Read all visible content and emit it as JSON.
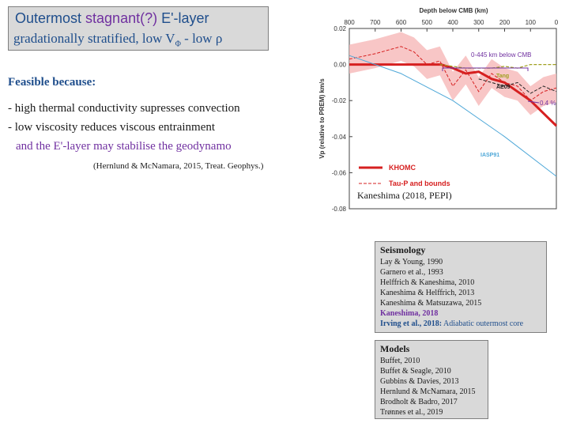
{
  "title": {
    "line1_a": "Outermost ",
    "line1_b": "stagnant(?)",
    "line1_c": " E'-layer",
    "line2_a": "gradationally stratified, low V",
    "line2_sub": "Φ",
    "line2_b": " - low ρ"
  },
  "feasible": {
    "heading": "Feasible because:",
    "reason1": "- high thermal conductivity supresses convection",
    "reason2": "- low viscosity reduces viscous entrainment",
    "reason3": "and the E'-layer may stabilise the geodynamo",
    "citation": "(Hernlund & McNamara, 2015, Treat. Geophys.)"
  },
  "plot": {
    "caption": "Kaneshima (2018, PEPI)",
    "annotation_zone": "0-445 km below CMB",
    "annotation_pct": "0.4 %",
    "chart_data": {
      "type": "line",
      "title": "Depth below CMB (km)",
      "xlabel": "Depth below CMB (km)",
      "ylabel": "Vp (relative to PREM) km/s",
      "x_ticks": [
        "800",
        "700",
        "600",
        "500",
        "400",
        "300",
        "200",
        "100",
        "0"
      ],
      "y_ticks": [
        "0.02",
        "0.00",
        "-0.02",
        "-0.04",
        "-0.06",
        "-0.08"
      ],
      "xlim": [
        800,
        0
      ],
      "ylim": [
        -0.08,
        0.02
      ],
      "series": [
        {
          "name": "KHOMC",
          "color": "#d62020",
          "x": [
            800,
            700,
            600,
            500,
            445,
            400,
            350,
            300,
            250,
            200,
            150,
            100,
            50,
            0
          ],
          "y": [
            0.0,
            0.0,
            0.0,
            0.0,
            0.0,
            -0.002,
            -0.005,
            -0.004,
            -0.008,
            -0.01,
            -0.015,
            -0.02,
            -0.027,
            -0.034
          ]
        },
        {
          "name": "Tau-P and bounds",
          "color": "#d62020",
          "x": [
            800,
            700,
            600,
            550,
            500,
            450,
            400,
            350,
            300,
            250,
            200,
            150,
            100,
            50,
            0
          ],
          "y": [
            0.003,
            0.006,
            0.01,
            0.007,
            0.0,
            0.002,
            -0.012,
            -0.003,
            -0.015,
            -0.005,
            -0.01,
            -0.012,
            -0.02,
            -0.015,
            -0.013
          ]
        },
        {
          "name": "Tang",
          "color": "#a0a020",
          "x": [
            450,
            350,
            250,
            200,
            150,
            100,
            50,
            0
          ],
          "y": [
            0.0,
            -0.002,
            -0.002,
            -0.001,
            -0.002,
            0.0,
            0.0,
            0.0
          ]
        },
        {
          "name": "AE09",
          "color": "#222222",
          "x": [
            300,
            250,
            200,
            150,
            100,
            50,
            0
          ],
          "y": [
            -0.008,
            -0.01,
            -0.012,
            -0.01,
            -0.016,
            -0.012,
            -0.015
          ]
        },
        {
          "name": "IASP91",
          "color": "#4fa8d8",
          "x": [
            800,
            600,
            400,
            200,
            0
          ],
          "y": [
            0.005,
            -0.005,
            -0.02,
            -0.04,
            -0.062
          ]
        }
      ],
      "legend_placement": "bottom-left"
    }
  },
  "seismology": {
    "heading": "Seismology",
    "items": [
      "Lay & Young, 1990",
      "Garnero et al., 1993",
      "Helffrich & Kaneshima, 2010",
      "Kaneshima & Helffrich, 2013",
      "Kaneshima & Matsuzawa, 2015"
    ],
    "highlight1": "Kaneshima, 2018",
    "highlight2_bold": "Irving et al., 2018:",
    "highlight2_rest": " Adiabatic outermost core"
  },
  "models": {
    "heading": "Models",
    "items": [
      "Buffet, 2010",
      "Buffet & Seagle, 2010",
      "Gubbins & Davies, 2013",
      "Hernlund & McNamara, 2015",
      "Brodholt & Badro, 2017",
      "Trønnes et al., 2019"
    ]
  }
}
